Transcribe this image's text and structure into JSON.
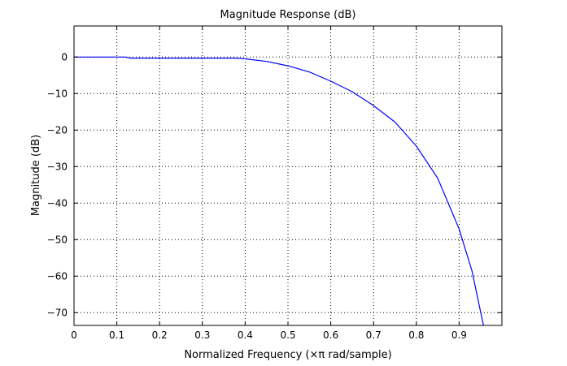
{
  "chart_data": {
    "type": "line",
    "title": "Magnitude Response (dB)",
    "xlabel": "Normalized Frequency (×π rad/sample)",
    "ylabel": "Magnitude (dB)",
    "xlim": [
      0,
      1
    ],
    "ylim": [
      -73.5,
      8.5
    ],
    "x_ticks": [
      0,
      0.1,
      0.2,
      0.3,
      0.4,
      0.5,
      0.6,
      0.7,
      0.8,
      0.9
    ],
    "x_tick_labels": [
      "0",
      "0.1",
      "0.2",
      "0.3",
      "0.4",
      "0.5",
      "0.6",
      "0.7",
      "0.8",
      "0.9"
    ],
    "y_ticks": [
      0,
      -10,
      -20,
      -30,
      -40,
      -50,
      -60,
      -70
    ],
    "y_tick_labels": [
      "0",
      "−10",
      "−20",
      "−30",
      "−40",
      "−50",
      "−60",
      "−70"
    ],
    "grid": true,
    "colors": {
      "line": "#0000ff",
      "grid": "#000000",
      "axes": "#000000"
    },
    "series": [
      {
        "x": [
          0,
          0.05,
          0.1,
          0.12,
          0.13,
          0.2,
          0.3,
          0.38,
          0.4,
          0.45,
          0.5,
          0.55,
          0.6,
          0.65,
          0.7,
          0.75,
          0.8,
          0.85,
          0.9,
          0.93,
          0.95,
          0.957
        ],
        "y": [
          0,
          0,
          0,
          0,
          -0.3,
          -0.3,
          -0.3,
          -0.3,
          -0.5,
          -1.2,
          -2.4,
          -4.1,
          -6.6,
          -9.5,
          -13.3,
          -17.8,
          -24.4,
          -33.2,
          -47.1,
          -58.6,
          -69.7,
          -73.5
        ]
      }
    ]
  }
}
